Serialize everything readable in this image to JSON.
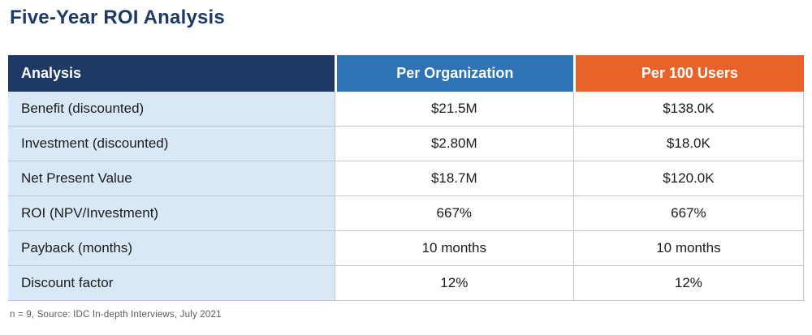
{
  "title": "Five-Year ROI Analysis",
  "footnote": "n = 9, Source: IDC In-depth Interviews, July 2021",
  "table": {
    "columns": [
      "Analysis",
      "Per Organization",
      "Per 100 Users"
    ],
    "rows": [
      {
        "label": "Benefit (discounted)",
        "per_organization": "$21.5M",
        "per_100_users": "$138.0K"
      },
      {
        "label": "Investment (discounted)",
        "per_organization": "$2.80M",
        "per_100_users": "$18.0K"
      },
      {
        "label": "Net Present Value",
        "per_organization": "$18.7M",
        "per_100_users": "$120.0K"
      },
      {
        "label": "ROI (NPV/Investment)",
        "per_organization": "667%",
        "per_100_users": "667%"
      },
      {
        "label": "Payback (months)",
        "per_organization": "10 months",
        "per_100_users": "10 months"
      },
      {
        "label": "Discount factor",
        "per_organization": "12%",
        "per_100_users": "12%"
      }
    ]
  },
  "colors": {
    "title_text": "#1e3a66",
    "header_analysis_bg": "#1e3a64",
    "header_org_bg": "#2e74b5",
    "header_users_bg": "#e8632a",
    "header_text": "#ffffff",
    "label_column_bg": "#d9e8f6",
    "body_text": "#1b1b1b",
    "grid_line": "#c6c6c6",
    "footnote_text": "#5a5a5a"
  },
  "chart_data": {
    "type": "table",
    "title": "Five-Year ROI Analysis",
    "columns": [
      "Analysis",
      "Per Organization",
      "Per 100 Users"
    ],
    "rows": [
      [
        "Benefit (discounted)",
        "$21.5M",
        "$138.0K"
      ],
      [
        "Investment (discounted)",
        "$2.80M",
        "$18.0K"
      ],
      [
        "Net Present Value",
        "$18.7M",
        "$120.0K"
      ],
      [
        "ROI (NPV/Investment)",
        "667%",
        "667%"
      ],
      [
        "Payback (months)",
        "10 months",
        "10 months"
      ],
      [
        "Discount factor",
        "12%",
        "12%"
      ]
    ],
    "footnote": "n = 9, Source: IDC In-depth Interviews, July 2021"
  }
}
